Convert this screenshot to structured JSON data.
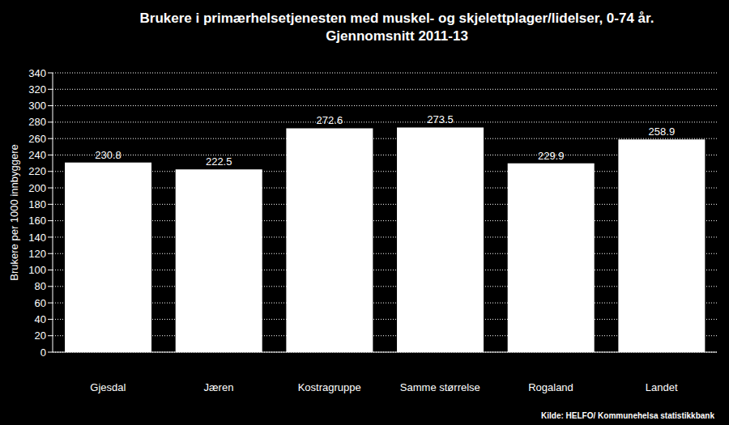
{
  "chart_data": {
    "type": "bar",
    "title": "Brukere i primærhelsetjenesten med muskel- og skjelettplager/lidelser, 0-74 år.",
    "subtitle": "Gjennomsnitt 2011-13",
    "y_label": "Brukere per 1000 innbyggere",
    "source": "Kilde: HELFO/ Kommunehelsa statistikkbank",
    "categories": [
      "Gjesdal",
      "Jæren",
      "Kostragruppe",
      "Samme størrelse",
      "Rogaland",
      "Landet"
    ],
    "values": [
      230.8,
      222.5,
      272.6,
      273.5,
      229.9,
      258.9
    ],
    "color": "#ffffff",
    "ylim": [
      0,
      340
    ],
    "yticks": [
      0,
      20,
      40,
      60,
      80,
      100,
      120,
      140,
      160,
      180,
      200,
      220,
      240,
      260,
      280,
      300,
      320,
      340
    ],
    "grid": true,
    "data_labels": true
  }
}
